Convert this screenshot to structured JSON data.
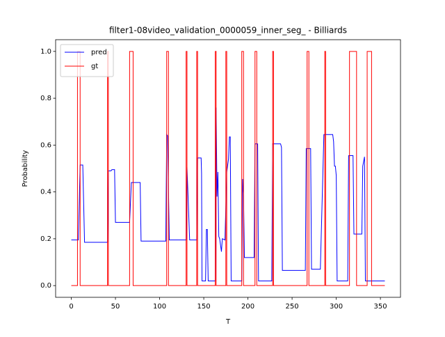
{
  "chart_data": {
    "type": "line",
    "title": "filter1-08video_validation_0000059_inner_seg_ - Billiards",
    "xlabel": "T",
    "ylabel": "Probability",
    "xlim": [
      -17.75,
      372.75
    ],
    "ylim": [
      -0.05,
      1.05
    ],
    "xticks": [
      0,
      50,
      100,
      150,
      200,
      250,
      300,
      350
    ],
    "yticks": [
      {
        "value": 0,
        "label": "0.0"
      },
      {
        "value": 0.2,
        "label": "0.2"
      },
      {
        "value": 0.4,
        "label": "0.4"
      },
      {
        "value": 0.6,
        "label": "0.6"
      },
      {
        "value": 0.8,
        "label": "0.8"
      },
      {
        "value": 1,
        "label": "1.0"
      }
    ],
    "legend": "upper left",
    "series": [
      {
        "name": "pred",
        "color": "#0000ff",
        "x": [
          0,
          8,
          10,
          13,
          15,
          41,
          42,
          45,
          46,
          49,
          50,
          66,
          68,
          78,
          79,
          107,
          108,
          109,
          111,
          130,
          131,
          134,
          142,
          143,
          147,
          147.5,
          148,
          152,
          153,
          154,
          155,
          163,
          164,
          165,
          166,
          167,
          168,
          170,
          171,
          174,
          176,
          178,
          179,
          180,
          181,
          193,
          194,
          195,
          196,
          207,
          208,
          211,
          212,
          227,
          228,
          237,
          238,
          239,
          265,
          266,
          271,
          272,
          282,
          286,
          296,
          297,
          298,
          299,
          300,
          301,
          313,
          314,
          319,
          320,
          329,
          330,
          332,
          333,
          355
        ],
        "values": [
          0.195,
          0.195,
          0.515,
          0.515,
          0.185,
          0.185,
          0.49,
          0.49,
          0.495,
          0.495,
          0.27,
          0.27,
          0.44,
          0.44,
          0.19,
          0.19,
          0.645,
          0.64,
          0.195,
          0.195,
          0.505,
          0.195,
          0.195,
          0.545,
          0.545,
          0.48,
          0.02,
          0.02,
          0.24,
          0.24,
          0.02,
          0.02,
          0.76,
          0.38,
          0.485,
          0.21,
          0.2,
          0.145,
          0.2,
          0.195,
          0.485,
          0.54,
          0.635,
          0.635,
          0.02,
          0.02,
          0.455,
          0.38,
          0.12,
          0.12,
          0.605,
          0.605,
          0.02,
          0.02,
          0.605,
          0.605,
          0.59,
          0.065,
          0.065,
          0.585,
          0.585,
          0.07,
          0.07,
          0.645,
          0.645,
          0.615,
          0.51,
          0.51,
          0.47,
          0.02,
          0.02,
          0.555,
          0.555,
          0.22,
          0.22,
          0.51,
          0.55,
          0.02,
          0.02
        ]
      },
      {
        "name": "gt",
        "color": "#ff0000",
        "x": [
          0,
          7,
          7,
          10,
          10,
          41,
          41,
          42,
          42,
          66,
          66,
          70,
          70,
          108,
          108,
          110,
          110,
          130,
          130,
          131,
          131,
          142,
          142,
          143,
          143,
          163,
          163,
          164,
          164,
          175,
          175,
          176,
          176,
          193,
          193,
          195,
          195,
          208,
          208,
          210,
          210,
          228,
          228,
          229,
          229,
          267,
          267,
          269,
          269,
          287,
          287,
          288,
          288,
          315,
          315,
          323,
          323,
          335,
          335,
          340,
          340,
          355
        ],
        "values": [
          0,
          0,
          1,
          1,
          0,
          0,
          1,
          1,
          0,
          0,
          1,
          1,
          0,
          0,
          1,
          1,
          0,
          0,
          1,
          1,
          0,
          0,
          1,
          1,
          0,
          0,
          1,
          1,
          0,
          0,
          1,
          1,
          0,
          0,
          1,
          1,
          0,
          0,
          1,
          1,
          0,
          0,
          1,
          1,
          0,
          0,
          1,
          1,
          0,
          0,
          1,
          1,
          0,
          0,
          1,
          1,
          0,
          0,
          1,
          1,
          0,
          0
        ]
      }
    ]
  }
}
